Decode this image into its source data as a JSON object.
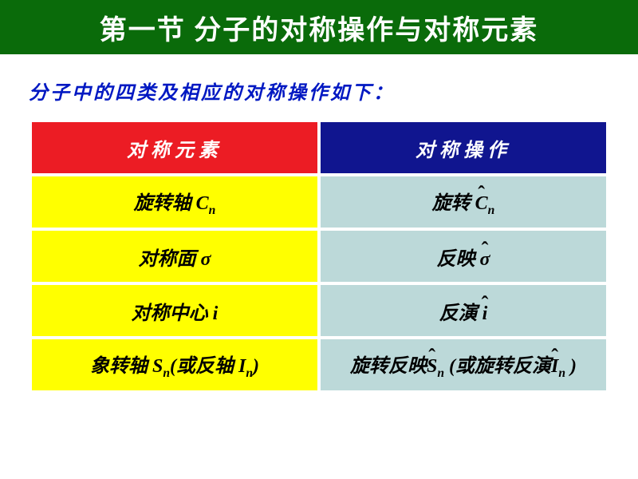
{
  "colors": {
    "title_bg": "#0a6b0a",
    "title_fg": "#ffffff",
    "subtitle_fg": "#0118c2",
    "hdr_left_bg": "#ec1c24",
    "hdr_right_bg": "#10158f",
    "hdr_fg": "#ffffff",
    "cell_left_bg": "#ffff00",
    "cell_right_bg": "#bcd9d9",
    "cell_fg": "#000000"
  },
  "title": "第一节  分子的对称操作与对称元素",
  "subtitle": "分子中的四类及相应的对称操作如下：",
  "table": {
    "headers": {
      "left": "对称元素",
      "right": "对称操作"
    },
    "rows": [
      {
        "left_prefix": "旋转轴 ",
        "left_sym": "C",
        "left_sub": "n",
        "right_prefix": "旋转 ",
        "right_sym": "C",
        "right_sub": "n",
        "right_hat": true
      },
      {
        "left_prefix": "对称面 ",
        "left_sym": "σ",
        "left_sub": "",
        "right_prefix": "反映 ",
        "right_sym": "σ",
        "right_sub": "",
        "right_hat": true
      },
      {
        "left_prefix": "对称中心 ",
        "left_sym": "i",
        "left_sub": "",
        "right_prefix": "反演 ",
        "right_sym": "i",
        "right_sub": "",
        "right_hat": true
      }
    ],
    "row4": {
      "left_text1": "象转轴 ",
      "left_sym1": "S",
      "left_sub1": "n",
      "left_text2": "(或反轴 ",
      "left_sym2": "I",
      "left_sub2": "n",
      "left_text3": ")",
      "right_text1": "旋转反映",
      "right_sym1": "S",
      "right_sub1": "n",
      "right_text2": " (或旋转反演",
      "right_sym2": "I",
      "right_sub2": "n",
      "right_text3": " )"
    }
  }
}
